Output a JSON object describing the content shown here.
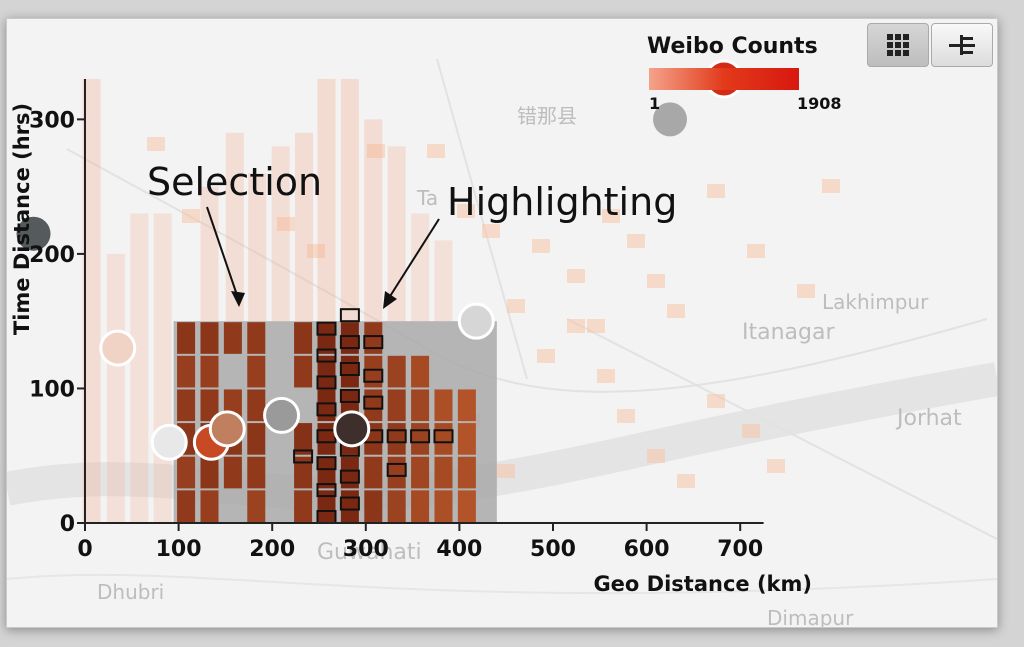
{
  "toolbar": {
    "buttons": [
      {
        "name": "grid-view-button",
        "icon": "grid-icon",
        "active": true
      },
      {
        "name": "tree-view-button",
        "icon": "tree-icon",
        "active": false
      }
    ]
  },
  "legend": {
    "title": "Weibo Counts",
    "min": "1",
    "max": "1908",
    "gradient": [
      "#f4a38a",
      "#d8180f"
    ]
  },
  "annotations": {
    "selection": "Selection",
    "highlighting": "Highlighting"
  },
  "map_labels": [
    "错那县",
    "Lakhimpur",
    "Itanagar",
    "Jorhat",
    "Dhubri",
    "Dimapur",
    "Guwahati",
    "Ta"
  ],
  "chart_data": {
    "type": "heatmap",
    "xlabel": "Geo Distance (km)",
    "ylabel": "Time Distance (hrs)",
    "x_ticks": [
      0,
      100,
      200,
      300,
      400,
      500,
      600,
      700
    ],
    "y_ticks": [
      0,
      100,
      200,
      300
    ],
    "xlim": [
      0,
      750
    ],
    "ylim": [
      0,
      330
    ],
    "selection_range": {
      "x": [
        100,
        440
      ],
      "y": [
        0,
        150
      ]
    },
    "columns": [
      {
        "x": 7,
        "cells": [
          [
            0,
            330,
            0.12
          ]
        ]
      },
      {
        "x": 33,
        "cells": [
          [
            0,
            200,
            0.08
          ]
        ]
      },
      {
        "x": 58,
        "cells": [
          [
            0,
            230,
            0.08
          ]
        ]
      },
      {
        "x": 83,
        "cells": [
          [
            0,
            230,
            0.08
          ]
        ]
      },
      {
        "x": 133,
        "cells": [
          [
            150,
            250,
            0.1
          ]
        ]
      },
      {
        "x": 160,
        "cells": [
          [
            150,
            290,
            0.1
          ]
        ]
      },
      {
        "x": 184,
        "cells": [
          [
            150,
            260,
            0.12
          ]
        ]
      },
      {
        "x": 209,
        "cells": [
          [
            150,
            280,
            0.1
          ]
        ]
      },
      {
        "x": 234,
        "cells": [
          [
            150,
            290,
            0.12
          ]
        ]
      },
      {
        "x": 258,
        "cells": [
          [
            150,
            330,
            0.15
          ]
        ]
      },
      {
        "x": 283,
        "cells": [
          [
            150,
            330,
            0.15
          ]
        ]
      },
      {
        "x": 308,
        "cells": [
          [
            150,
            300,
            0.12
          ]
        ]
      },
      {
        "x": 333,
        "cells": [
          [
            150,
            280,
            0.1
          ]
        ]
      },
      {
        "x": 358,
        "cells": [
          [
            150,
            230,
            0.08
          ]
        ]
      },
      {
        "x": 383,
        "cells": [
          [
            150,
            210,
            0.08
          ]
        ]
      }
    ],
    "selected_cells": [
      {
        "x": 108,
        "y": 0,
        "v": 0.8
      },
      {
        "x": 108,
        "y": 25,
        "v": 0.75
      },
      {
        "x": 108,
        "y": 50,
        "v": 0.85
      },
      {
        "x": 108,
        "y": 75,
        "v": 0.8
      },
      {
        "x": 108,
        "y": 100,
        "v": 0.75
      },
      {
        "x": 108,
        "y": 125,
        "v": 0.85
      },
      {
        "x": 133,
        "y": 0,
        "v": 0.75
      },
      {
        "x": 133,
        "y": 25,
        "v": 0.85
      },
      {
        "x": 133,
        "y": 50,
        "v": 0.9
      },
      {
        "x": 133,
        "y": 75,
        "v": 0.8
      },
      {
        "x": 133,
        "y": 100,
        "v": 0.75
      },
      {
        "x": 133,
        "y": 125,
        "v": 0.85
      },
      {
        "x": 158,
        "y": 25,
        "v": 0.8
      },
      {
        "x": 158,
        "y": 50,
        "v": 0.85
      },
      {
        "x": 158,
        "y": 75,
        "v": 0.75
      },
      {
        "x": 158,
        "y": 125,
        "v": 0.8
      },
      {
        "x": 183,
        "y": 0,
        "v": 0.7
      },
      {
        "x": 183,
        "y": 25,
        "v": 0.8
      },
      {
        "x": 183,
        "y": 50,
        "v": 0.85
      },
      {
        "x": 183,
        "y": 75,
        "v": 0.8
      },
      {
        "x": 183,
        "y": 100,
        "v": 0.75
      },
      {
        "x": 183,
        "y": 125,
        "v": 0.8
      },
      {
        "x": 233,
        "y": 0,
        "v": 0.8
      },
      {
        "x": 233,
        "y": 25,
        "v": 0.85
      },
      {
        "x": 233,
        "y": 50,
        "v": 0.9
      },
      {
        "x": 233,
        "y": 100,
        "v": 0.8
      },
      {
        "x": 233,
        "y": 125,
        "v": 0.85
      },
      {
        "x": 258,
        "y": 0,
        "v": 1.0
      },
      {
        "x": 258,
        "y": 25,
        "v": 1.0
      },
      {
        "x": 258,
        "y": 50,
        "v": 1.0
      },
      {
        "x": 258,
        "y": 75,
        "v": 1.0
      },
      {
        "x": 258,
        "y": 100,
        "v": 1.0
      },
      {
        "x": 258,
        "y": 125,
        "v": 1.0
      },
      {
        "x": 283,
        "y": 0,
        "v": 1.0
      },
      {
        "x": 283,
        "y": 25,
        "v": 1.0
      },
      {
        "x": 283,
        "y": 50,
        "v": 1.0
      },
      {
        "x": 283,
        "y": 75,
        "v": 1.0
      },
      {
        "x": 283,
        "y": 100,
        "v": 1.0
      },
      {
        "x": 283,
        "y": 125,
        "v": 1.0
      },
      {
        "x": 308,
        "y": 0,
        "v": 0.85
      },
      {
        "x": 308,
        "y": 25,
        "v": 0.8
      },
      {
        "x": 308,
        "y": 50,
        "v": 0.85
      },
      {
        "x": 308,
        "y": 75,
        "v": 0.8
      },
      {
        "x": 308,
        "y": 100,
        "v": 0.75
      },
      {
        "x": 308,
        "y": 125,
        "v": 0.8
      },
      {
        "x": 333,
        "y": 0,
        "v": 0.7
      },
      {
        "x": 333,
        "y": 25,
        "v": 0.75
      },
      {
        "x": 333,
        "y": 50,
        "v": 0.8
      },
      {
        "x": 333,
        "y": 75,
        "v": 0.75
      },
      {
        "x": 333,
        "y": 100,
        "v": 0.7
      },
      {
        "x": 358,
        "y": 0,
        "v": 0.6
      },
      {
        "x": 358,
        "y": 25,
        "v": 0.65
      },
      {
        "x": 358,
        "y": 50,
        "v": 0.7
      },
      {
        "x": 358,
        "y": 75,
        "v": 0.65
      },
      {
        "x": 358,
        "y": 100,
        "v": 0.6
      },
      {
        "x": 383,
        "y": 0,
        "v": 0.55
      },
      {
        "x": 383,
        "y": 25,
        "v": 0.6
      },
      {
        "x": 383,
        "y": 50,
        "v": 0.6
      },
      {
        "x": 383,
        "y": 75,
        "v": 0.55
      },
      {
        "x": 408,
        "y": 0,
        "v": 0.5
      },
      {
        "x": 408,
        "y": 25,
        "v": 0.55
      },
      {
        "x": 408,
        "y": 50,
        "v": 0.5
      },
      {
        "x": 408,
        "y": 75,
        "v": 0.5
      }
    ],
    "highlighted_cells": [
      {
        "x": 258,
        "y": 0
      },
      {
        "x": 258,
        "y": 20
      },
      {
        "x": 258,
        "y": 40
      },
      {
        "x": 258,
        "y": 60
      },
      {
        "x": 258,
        "y": 80
      },
      {
        "x": 258,
        "y": 100
      },
      {
        "x": 258,
        "y": 120
      },
      {
        "x": 258,
        "y": 140
      },
      {
        "x": 283,
        "y": 10
      },
      {
        "x": 283,
        "y": 30
      },
      {
        "x": 283,
        "y": 50
      },
      {
        "x": 283,
        "y": 70
      },
      {
        "x": 283,
        "y": 90
      },
      {
        "x": 283,
        "y": 110
      },
      {
        "x": 283,
        "y": 130
      },
      {
        "x": 283,
        "y": 150
      },
      {
        "x": 233,
        "y": 45
      },
      {
        "x": 308,
        "y": 60
      },
      {
        "x": 333,
        "y": 60
      },
      {
        "x": 358,
        "y": 60
      },
      {
        "x": 383,
        "y": 60
      },
      {
        "x": 333,
        "y": 35
      },
      {
        "x": 308,
        "y": 85
      },
      {
        "x": 308,
        "y": 105
      },
      {
        "x": 308,
        "y": 130
      }
    ],
    "circles": [
      {
        "x": 35,
        "y": 130,
        "fill": "#f1d3c5",
        "stroke": "#ffffff"
      },
      {
        "x": 90,
        "y": 60,
        "fill": "#e8e8e8",
        "stroke": "#ffffff"
      },
      {
        "x": 135,
        "y": 60,
        "fill": "#c84a25",
        "stroke": "#ffffff"
      },
      {
        "x": 152,
        "y": 70,
        "fill": "#c08060",
        "stroke": "#ffffff"
      },
      {
        "x": 210,
        "y": 80,
        "fill": "#9a9a9a",
        "stroke": "#ffffff"
      },
      {
        "x": 285,
        "y": 70,
        "fill": "#3e2f2c",
        "stroke": "#ffffff"
      },
      {
        "x": 418,
        "y": 150,
        "fill": "#d6d6d6",
        "stroke": "#ffffff"
      },
      {
        "x": -55,
        "y": 215,
        "fill": "#555a5c",
        "stroke": "none"
      },
      {
        "x": 625,
        "y": 300,
        "fill": "#a8a8a8",
        "stroke": "none"
      }
    ]
  }
}
